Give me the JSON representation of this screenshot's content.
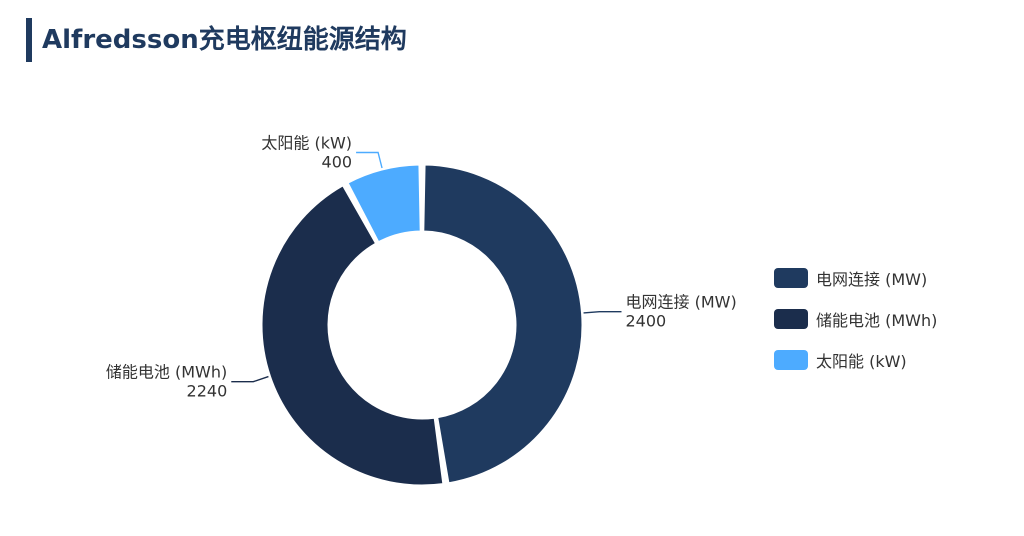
{
  "title": "Alfredsson充电枢纽能源结构",
  "colors": {
    "title": "#1f3a5f"
  },
  "chart_data": {
    "type": "pie",
    "donut": true,
    "legend_position": "right",
    "categories": [
      "电网连接 (MW)",
      "储能电池 (MWh)",
      "太阳能 (kW)"
    ],
    "values": [
      2400,
      2240,
      400
    ],
    "data_labels": [
      "2400",
      "2240",
      "400"
    ],
    "colors": [
      "#1f3a5f",
      "#1b2d4c",
      "#4dabff"
    ]
  }
}
